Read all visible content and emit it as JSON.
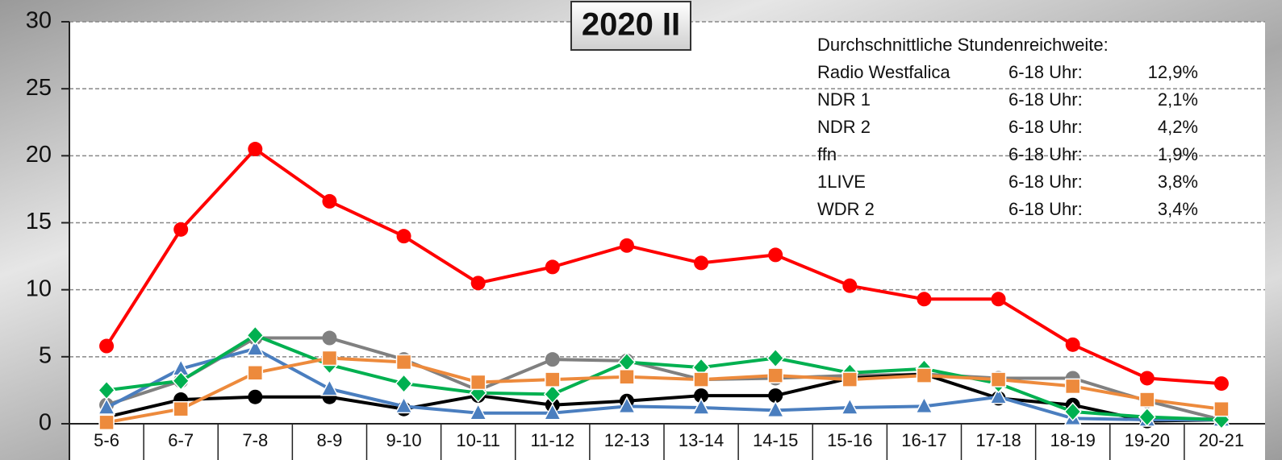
{
  "chart_data": {
    "type": "line",
    "title": "2020 II",
    "categories": [
      "5-6",
      "6-7",
      "7-8",
      "8-9",
      "9-10",
      "10-11",
      "11-12",
      "12-13",
      "13-14",
      "14-15",
      "15-16",
      "16-17",
      "17-18",
      "18-19",
      "19-20",
      "20-21"
    ],
    "ylim": [
      0,
      30
    ],
    "yticks": [
      0,
      5,
      10,
      15,
      20,
      25,
      30
    ],
    "grid": true,
    "series": [
      {
        "color": "#808080",
        "marker": "circle",
        "values": [
          1.4,
          3.2,
          6.4,
          6.4,
          4.8,
          2.5,
          4.8,
          4.7,
          3.3,
          3.4,
          3.6,
          3.7,
          3.4,
          3.4,
          1.7,
          0.3
        ]
      },
      {
        "color": "#000000",
        "marker": "circle",
        "values": [
          0.5,
          1.8,
          2.0,
          2.0,
          1.1,
          2.1,
          1.4,
          1.7,
          2.1,
          2.1,
          3.4,
          3.7,
          1.9,
          1.4,
          0.2,
          0.3
        ]
      },
      {
        "color": "#4a7ebf",
        "marker": "triangle",
        "values": [
          1.2,
          4.1,
          5.6,
          2.6,
          1.3,
          0.8,
          0.8,
          1.3,
          1.2,
          1.0,
          1.2,
          1.3,
          2.0,
          0.4,
          0.3,
          0.3
        ]
      },
      {
        "color": "#00b050",
        "marker": "diamond",
        "values": [
          2.5,
          3.2,
          6.6,
          4.4,
          3.0,
          2.3,
          2.2,
          4.6,
          4.2,
          4.9,
          3.8,
          4.1,
          3.0,
          0.9,
          0.5,
          0.3
        ]
      },
      {
        "color": "#ed8a3c",
        "marker": "square",
        "values": [
          0.1,
          1.1,
          3.8,
          4.9,
          4.6,
          3.1,
          3.3,
          3.5,
          3.3,
          3.6,
          3.3,
          3.6,
          3.3,
          2.8,
          1.8,
          1.1
        ]
      },
      {
        "color": "#ff0000",
        "marker": "circle",
        "values": [
          5.8,
          14.5,
          20.5,
          16.6,
          14.0,
          10.5,
          11.7,
          13.3,
          12.0,
          12.6,
          10.3,
          9.3,
          9.3,
          5.9,
          3.4,
          3.0
        ]
      }
    ],
    "annotation": {
      "title": "Durchschnittliche Stundenreichweite:",
      "rows": [
        [
          "Radio Westfalica",
          "6-18 Uhr:",
          "12,9%"
        ],
        [
          "NDR 1",
          "6-18 Uhr:",
          "2,1%"
        ],
        [
          "NDR 2",
          "6-18 Uhr:",
          "4,2%"
        ],
        [
          "ffn",
          "6-18 Uhr:",
          "1,9%"
        ],
        [
          "1LIVE",
          "6-18 Uhr:",
          "3,8%"
        ],
        [
          "WDR 2",
          "6-18 Uhr:",
          "3,4%"
        ]
      ]
    }
  }
}
